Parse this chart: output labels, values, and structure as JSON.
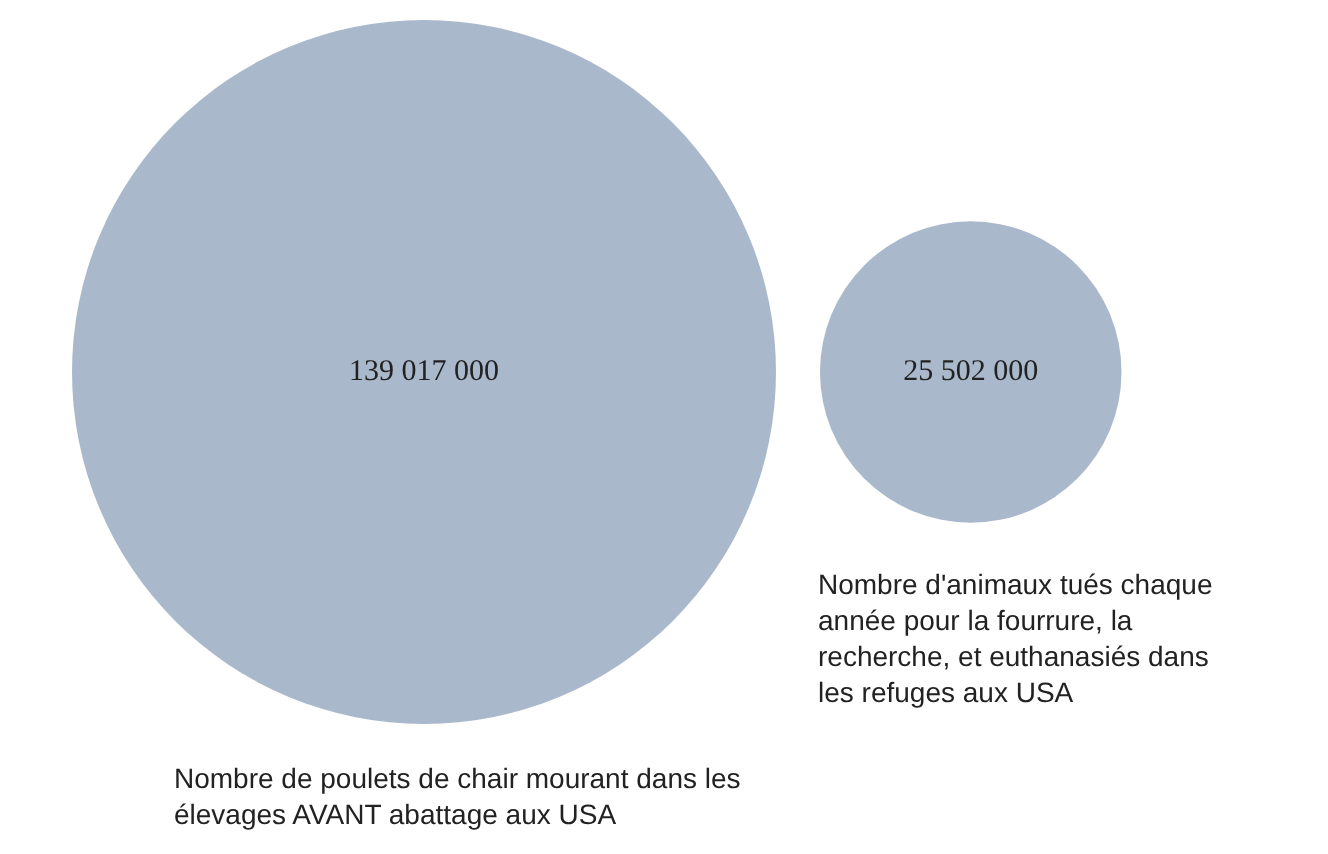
{
  "chart_data": {
    "type": "other",
    "categories": [
      "Nombre de poulets de chair mourant dans les élevages AVANT abattage aux USA",
      "Nombre d'animaux tués chaque année pour la fourrure, la recherche, et euthanasiés dans les refuges aux USA"
    ],
    "values": [
      139017000,
      25502000
    ],
    "value_labels": [
      "139 017 000",
      "25 502 000"
    ],
    "color": "#a9b9cb"
  }
}
